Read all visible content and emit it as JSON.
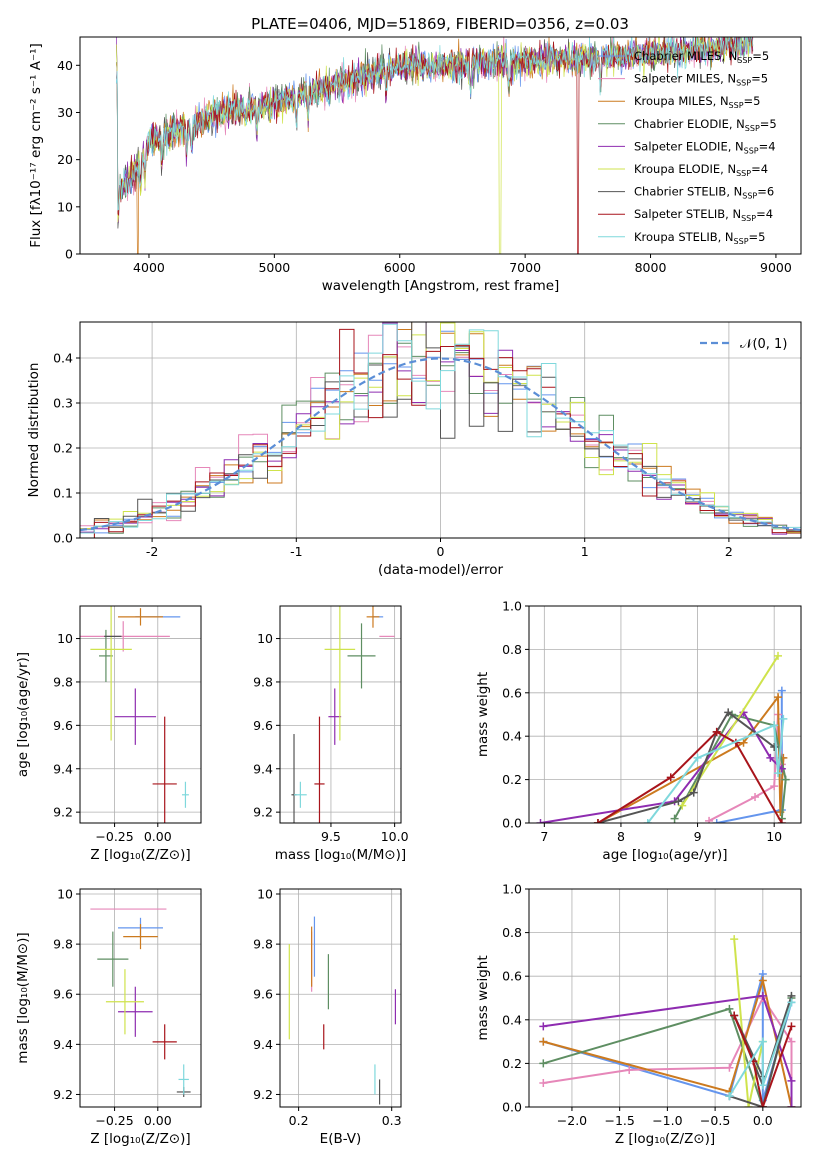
{
  "title": "PLATE=0406, MJD=51869, FIBERID=0356, z=0.03",
  "models": [
    {
      "name": "Chabrier MILES, N",
      "nssp": "5",
      "color": "#6495ed"
    },
    {
      "name": "Salpeter MILES, N",
      "nssp": "5",
      "color": "#e687b9"
    },
    {
      "name": "Kroupa MILES, N",
      "nssp": "5",
      "color": "#cc7a1f"
    },
    {
      "name": "Chabrier ELODIE, N",
      "nssp": "5",
      "color": "#5e8e62"
    },
    {
      "name": "Salpeter ELODIE, N",
      "nssp": "4",
      "color": "#8e2cb0"
    },
    {
      "name": "Kroupa ELODIE, N",
      "nssp": "4",
      "color": "#cfe34c"
    },
    {
      "name": "Chabrier STELIB, N",
      "nssp": "6",
      "color": "#555555"
    },
    {
      "name": "Salpeter STELIB, N",
      "nssp": "4",
      "color": "#a8141b"
    },
    {
      "name": "Kroupa STELIB, N",
      "nssp": "5",
      "color": "#7fd8dc"
    }
  ],
  "chart_data": [
    {
      "id": "spectrum",
      "type": "line",
      "xlabel": "wavelength [Angstrom, rest frame]",
      "ylabel": "Flux [fλ10⁻¹⁷ erg cm⁻² s⁻¹ A⁻¹]",
      "xlim": [
        3450,
        9200
      ],
      "ylim": [
        0,
        46
      ],
      "xticks": [
        4000,
        5000,
        6000,
        7000,
        8000,
        9000
      ],
      "yticks": [
        0,
        10,
        20,
        30,
        40
      ],
      "legend": "top-right",
      "continuum": {
        "x": [
          3750,
          3900,
          4000,
          4300,
          4600,
          5000,
          5500,
          6000,
          6500,
          7000,
          7500,
          8000,
          8500,
          8800
        ],
        "y": [
          13,
          18,
          24,
          27,
          30,
          32,
          36,
          40,
          40,
          41,
          41.5,
          42.5,
          43.5,
          45
        ]
      }
    },
    {
      "id": "residuals",
      "type": "step",
      "xlabel": "(data-model)/error",
      "ylabel": "Normed distribution",
      "xlim": [
        -2.5,
        2.5
      ],
      "ylim": [
        0,
        0.48
      ],
      "xticks": [
        -2,
        -1,
        0,
        1,
        2
      ],
      "yticks": [
        0.0,
        0.1,
        0.2,
        0.3,
        0.4
      ],
      "grid": true,
      "legend": "top-right",
      "reference": {
        "name": "𝒩(0, 1)",
        "color": "#5b8ed6",
        "mean": 0,
        "sigma": 1
      },
      "bin_width": 0.1
    },
    {
      "id": "z-age",
      "type": "errorbar",
      "xlabel": "Z [log₁₀(Z/Z⊙)]",
      "ylabel": "age  [log₁₀(age/yr)]",
      "xlim": [
        -0.45,
        0.25
      ],
      "ylim": [
        9.15,
        10.15
      ],
      "xticks": [
        -0.25,
        0.0
      ],
      "xticklabels": [
        "−0.25",
        "0.00"
      ],
      "yticks": [
        9.2,
        9.4,
        9.6,
        9.8,
        10.0
      ],
      "grid": true,
      "points": [
        {
          "x": 0.0,
          "xerr": 0.13,
          "y": 10.1,
          "yerr": 0.0
        },
        {
          "x": -0.2,
          "xerr": 0.27,
          "y": 10.01,
          "yerr": 0.07
        },
        {
          "x": -0.1,
          "xerr": 0.13,
          "y": 10.1,
          "yerr": 0.04
        },
        {
          "x": -0.3,
          "xerr": 0.04,
          "y": 9.92,
          "yerr": 0.12
        },
        {
          "x": -0.13,
          "xerr": 0.12,
          "y": 9.64,
          "yerr": 0.13
        },
        {
          "x": -0.27,
          "xerr": 0.12,
          "y": 9.95,
          "yerr": 0.42
        },
        {
          "x": -0.26,
          "xerr": 0.05,
          "y": 10.01,
          "yerr": 0.0
        },
        {
          "x": 0.04,
          "xerr": 0.07,
          "y": 9.33,
          "yerr": 0.31
        },
        {
          "x": 0.16,
          "xerr": 0.02,
          "y": 9.28,
          "yerr": 0.06
        }
      ]
    },
    {
      "id": "mass-age",
      "type": "errorbar",
      "xlabel": "mass [log₁₀(M/M⊙)]",
      "ylabel": "",
      "xlim": [
        9.1,
        10.05
      ],
      "ylim": [
        9.15,
        10.15
      ],
      "xticks": [
        9.5,
        10.0
      ],
      "xticklabels": [
        "9.5",
        "10.0"
      ],
      "yticks": [
        9.2,
        9.4,
        9.6,
        9.8,
        10.0
      ],
      "grid": true,
      "points": [
        {
          "x": 9.87,
          "xerr": 0.04,
          "y": 10.1,
          "yerr": 0.0
        },
        {
          "x": 9.94,
          "xerr": 0.06,
          "y": 10.01,
          "yerr": 0.0
        },
        {
          "x": 9.83,
          "xerr": 0.05,
          "y": 10.1,
          "yerr": 0.05
        },
        {
          "x": 9.74,
          "xerr": 0.11,
          "y": 9.92,
          "yerr": 0.15
        },
        {
          "x": 9.53,
          "xerr": 0.05,
          "y": 9.64,
          "yerr": 0.13
        },
        {
          "x": 9.57,
          "xerr": 0.12,
          "y": 9.95,
          "yerr": 0.42
        },
        {
          "x": 9.21,
          "xerr": 0.02,
          "y": 9.28,
          "yerr": 0.28
        },
        {
          "x": 9.41,
          "xerr": 0.04,
          "y": 9.33,
          "yerr": 0.31
        },
        {
          "x": 9.26,
          "xerr": 0.05,
          "y": 9.28,
          "yerr": 0.06
        }
      ]
    },
    {
      "id": "age-weight",
      "type": "line",
      "xlabel": "age  [log₁₀(age/yr)]",
      "ylabel": "mass weight",
      "xlim": [
        6.8,
        10.35
      ],
      "ylim": [
        0,
        1.0
      ],
      "xticks": [
        7,
        8,
        9,
        10
      ],
      "yticks": [
        0.0,
        0.2,
        0.4,
        0.6,
        0.8,
        1.0
      ],
      "grid": true,
      "series": [
        {
          "x": [
            9.25,
            10.1,
            10.1,
            10.1
          ],
          "y": [
            0.0,
            0.06,
            0.61,
            0.3
          ]
        },
        {
          "x": [
            9.15,
            9.75,
            10.0,
            10.05,
            10.1
          ],
          "y": [
            0.01,
            0.12,
            0.17,
            0.5,
            0.27
          ]
        },
        {
          "x": [
            7.7,
            9.6,
            10.05,
            10.08,
            10.12
          ],
          "y": [
            0.0,
            0.37,
            0.58,
            0.05,
            0.3
          ]
        },
        {
          "x": [
            8.7,
            9.45,
            10.0,
            10.15,
            10.1
          ],
          "y": [
            0.02,
            0.5,
            0.45,
            0.2,
            0.02
          ]
        },
        {
          "x": [
            6.95,
            8.7,
            9.6,
            9.95,
            10.1
          ],
          "y": [
            0.0,
            0.1,
            0.51,
            0.3,
            0.25
          ]
        },
        {
          "x": [
            8.8,
            10.05
          ],
          "y": [
            0.08,
            0.77
          ]
        },
        {
          "x": [
            7.7,
            8.75,
            8.95,
            9.25,
            9.4,
            10.0
          ],
          "y": [
            0.0,
            0.1,
            0.14,
            0.42,
            0.51,
            0.35
          ]
        },
        {
          "x": [
            7.7,
            8.65,
            9.25,
            9.5,
            10.1
          ],
          "y": [
            0.0,
            0.21,
            0.42,
            0.37,
            0.0
          ]
        },
        {
          "x": [
            8.35,
            9.0,
            10.0,
            10.05,
            10.12
          ],
          "y": [
            0.0,
            0.3,
            0.45,
            0.23,
            0.48
          ]
        }
      ]
    },
    {
      "id": "z-mass",
      "type": "errorbar",
      "xlabel": "Z [log₁₀(Z/Z⊙)]",
      "ylabel": "mass [log₁₀(M/M⊙)]",
      "xlim": [
        -0.45,
        0.25
      ],
      "ylim": [
        9.15,
        10.02
      ],
      "xticks": [
        -0.25,
        0.0
      ],
      "xticklabels": [
        "−0.25",
        "0.00"
      ],
      "yticks": [
        9.2,
        9.4,
        9.6,
        9.8,
        10.0
      ],
      "grid": true,
      "points": [
        {
          "x": -0.1,
          "xerr": 0.13,
          "y": 9.865,
          "yerr": 0.04
        },
        {
          "x": -0.17,
          "xerr": 0.22,
          "y": 9.94,
          "yerr": 0.0
        },
        {
          "x": -0.1,
          "xerr": 0.1,
          "y": 9.83,
          "yerr": 0.05
        },
        {
          "x": -0.26,
          "xerr": 0.09,
          "y": 9.74,
          "yerr": 0.11
        },
        {
          "x": -0.13,
          "xerr": 0.1,
          "y": 9.53,
          "yerr": 0.1
        },
        {
          "x": -0.19,
          "xerr": 0.11,
          "y": 9.57,
          "yerr": 0.13
        },
        {
          "x": 0.15,
          "xerr": 0.04,
          "y": 9.21,
          "yerr": 0.02
        },
        {
          "x": 0.04,
          "xerr": 0.07,
          "y": 9.41,
          "yerr": 0.07
        },
        {
          "x": 0.15,
          "xerr": 0.03,
          "y": 9.26,
          "yerr": 0.06
        }
      ]
    },
    {
      "id": "ebv-mass",
      "type": "errorbar",
      "xlabel": "E(B-V)",
      "ylabel": "",
      "xlim": [
        0.18,
        0.31
      ],
      "ylim": [
        9.15,
        10.02
      ],
      "xticks": [
        0.2,
        0.3
      ],
      "xticklabels": [
        "0.2",
        "0.3"
      ],
      "yticks": [
        9.2,
        9.4,
        9.6,
        9.8,
        10.0
      ],
      "grid": true,
      "points": [
        {
          "x": 0.217,
          "xerr": 0.0,
          "y": 9.79,
          "yerr": 0.12
        },
        {
          "x": 0.214,
          "xerr": 0.0,
          "y": 9.73,
          "yerr": 0.12
        },
        {
          "x": 0.214,
          "xerr": 0.0,
          "y": 9.75,
          "yerr": 0.12
        },
        {
          "x": 0.232,
          "xerr": 0.0,
          "y": 9.65,
          "yerr": 0.11
        },
        {
          "x": 0.304,
          "xerr": 0.0,
          "y": 9.55,
          "yerr": 0.07
        },
        {
          "x": 0.19,
          "xerr": 0.0,
          "y": 9.61,
          "yerr": 0.19
        },
        {
          "x": 0.287,
          "xerr": 0.0,
          "y": 9.21,
          "yerr": 0.05
        },
        {
          "x": 0.227,
          "xerr": 0.0,
          "y": 9.43,
          "yerr": 0.05
        },
        {
          "x": 0.282,
          "xerr": 0.0,
          "y": 9.26,
          "yerr": 0.06
        }
      ]
    },
    {
      "id": "z-weight",
      "type": "line",
      "xlabel": "Z [log₁₀(Z/Z⊙)]",
      "ylabel": "mass weight",
      "xlim": [
        -2.45,
        0.4
      ],
      "ylim": [
        0,
        1.0
      ],
      "xticks": [
        -2.0,
        -1.5,
        -1.0,
        -0.5,
        0.0
      ],
      "xticklabels": [
        "−2.0",
        "−1.5",
        "−1.0",
        "−0.5",
        "0.0"
      ],
      "yticks": [
        0.0,
        0.2,
        0.4,
        0.6,
        0.8,
        1.0
      ],
      "grid": true,
      "series": [
        {
          "x": [
            -2.3,
            -0.35,
            0.0,
            0.0,
            0.3
          ],
          "y": [
            0.3,
            0.05,
            0.61,
            0.03,
            0.48
          ]
        },
        {
          "x": [
            -2.3,
            -1.4,
            -0.35,
            0.0,
            0.3,
            0.3
          ],
          "y": [
            0.11,
            0.17,
            0.18,
            0.5,
            0.3,
            0.0
          ]
        },
        {
          "x": [
            -2.3,
            -0.35,
            0.0,
            0.3
          ],
          "y": [
            0.3,
            0.07,
            0.58,
            0.0
          ]
        },
        {
          "x": [
            -2.3,
            -0.35,
            0.0,
            0.3
          ],
          "y": [
            0.2,
            0.45,
            0.0,
            0.5
          ]
        },
        {
          "x": [
            -2.3,
            0.0,
            0.3,
            0.3
          ],
          "y": [
            0.37,
            0.51,
            0.12,
            0.0
          ]
        },
        {
          "x": [
            -0.3,
            -0.15,
            0.0
          ],
          "y": [
            0.77,
            0.0,
            0.3
          ]
        },
        {
          "x": [
            -0.35,
            0.0,
            0.3,
            0.0,
            -0.3,
            0.0
          ],
          "y": [
            0.05,
            0.0,
            0.51,
            0.1,
            0.42,
            0.14
          ]
        },
        {
          "x": [
            -0.3,
            -0.1,
            0.0,
            0.3
          ],
          "y": [
            0.42,
            0.21,
            0.0,
            0.37
          ]
        },
        {
          "x": [
            -0.35,
            0.0,
            0.0,
            0.3
          ],
          "y": [
            0.05,
            0.3,
            0.1,
            0.48
          ]
        }
      ]
    }
  ]
}
